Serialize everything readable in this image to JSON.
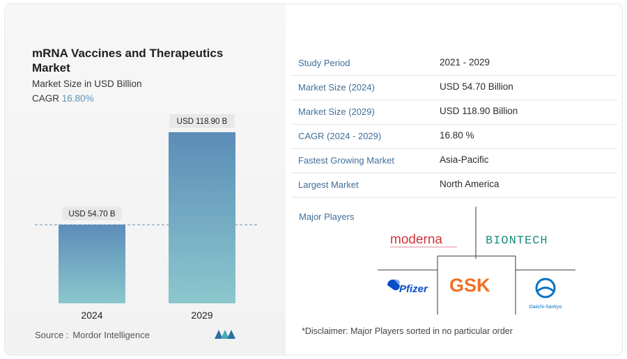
{
  "title": "mRNA Vaccines and Therapeutics Market",
  "subtitle": "Market Size in USD Billion",
  "cagr": {
    "label": "CAGR",
    "value": "16.80%"
  },
  "chart_data": {
    "type": "bar",
    "categories": [
      "2024",
      "2029"
    ],
    "values": [
      54.7,
      118.9
    ],
    "data_labels": [
      "USD 54.70 B",
      "USD 118.90 B"
    ],
    "title": "mRNA Vaccines and Therapeutics Market",
    "ylabel": "Market Size in USD Billion",
    "ylim": [
      0,
      118.9
    ],
    "grid": false,
    "colors": [
      "#5b8db8",
      "#8cc7cd"
    ]
  },
  "stats": [
    {
      "label": "Study Period",
      "value": "2021 - 2029"
    },
    {
      "label": "Market Size (2024)",
      "value": "USD 54.70 Billion"
    },
    {
      "label": "Market Size (2029)",
      "value": "USD 118.90 Billion"
    },
    {
      "label": "CAGR (2024 - 2029)",
      "value": "16.80 %"
    },
    {
      "label": "Fastest Growing Market",
      "value": "Asia-Pacific"
    },
    {
      "label": "Largest Market",
      "value": "North America"
    }
  ],
  "major_players_label": "Major Players",
  "players": [
    {
      "name": "moderna",
      "color": "#d2343c"
    },
    {
      "name": "BIONTECH",
      "color": "#1b8f80"
    },
    {
      "name": "Pfizer",
      "color": "#0a4ec8"
    },
    {
      "name": "GSK",
      "color": "#f36e21"
    },
    {
      "name": "Daiichi-Sankyo",
      "color": "#0073c2"
    }
  ],
  "disclaimer": "*Disclaimer: Major Players sorted in no particular order",
  "source": {
    "label": "Source :",
    "value": "Mordor Intelligence"
  }
}
